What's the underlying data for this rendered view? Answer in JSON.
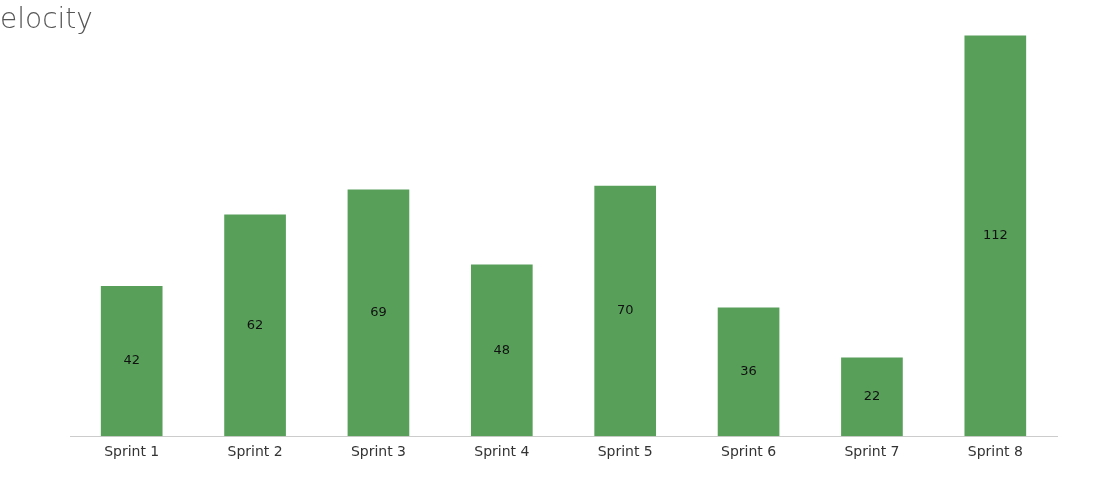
{
  "chart_data": {
    "type": "bar",
    "title": "elocity",
    "categories": [
      "Sprint 1",
      "Sprint 2",
      "Sprint 3",
      "Sprint 4",
      "Sprint 5",
      "Sprint 6",
      "Sprint 7",
      "Sprint 8"
    ],
    "values": [
      42,
      62,
      69,
      48,
      70,
      36,
      22,
      112
    ],
    "color": "#58a05a",
    "data_labels": true,
    "grid": false,
    "legend": false
  }
}
